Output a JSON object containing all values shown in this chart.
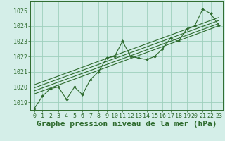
{
  "xlabel": "Graphe pression niveau de la mer (hPa)",
  "bg_color": "#d4eee8",
  "grid_color": "#9ecfbc",
  "line_color": "#2d6a2d",
  "ylim": [
    1018.5,
    1025.6
  ],
  "xlim": [
    -0.5,
    23.5
  ],
  "yticks": [
    1019,
    1020,
    1021,
    1022,
    1023,
    1024,
    1025
  ],
  "xticks": [
    0,
    1,
    2,
    3,
    4,
    5,
    6,
    7,
    8,
    9,
    10,
    11,
    12,
    13,
    14,
    15,
    16,
    17,
    18,
    19,
    20,
    21,
    22,
    23
  ],
  "hours": [
    0,
    1,
    2,
    3,
    4,
    5,
    6,
    7,
    8,
    9,
    10,
    11,
    12,
    13,
    14,
    15,
    16,
    17,
    18,
    19,
    20,
    21,
    22,
    23
  ],
  "pressure": [
    1018.6,
    1019.4,
    1019.9,
    1020.0,
    1019.2,
    1020.0,
    1019.5,
    1020.5,
    1021.0,
    1021.9,
    1022.0,
    1023.0,
    1022.0,
    1021.9,
    1021.8,
    1022.0,
    1022.5,
    1023.2,
    1023.0,
    1023.8,
    1024.0,
    1025.1,
    1024.8,
    1024.05
  ],
  "trend1_x": [
    0,
    23
  ],
  "trend1_y": [
    1019.55,
    1024.0
  ],
  "trend2_x": [
    0,
    23
  ],
  "trend2_y": [
    1019.75,
    1024.15
  ],
  "trend3_x": [
    0,
    23
  ],
  "trend3_y": [
    1019.95,
    1024.35
  ],
  "trend4_x": [
    0,
    23
  ],
  "trend4_y": [
    1020.15,
    1024.55
  ],
  "tick_fontsize": 6,
  "xlabel_fontsize": 8
}
